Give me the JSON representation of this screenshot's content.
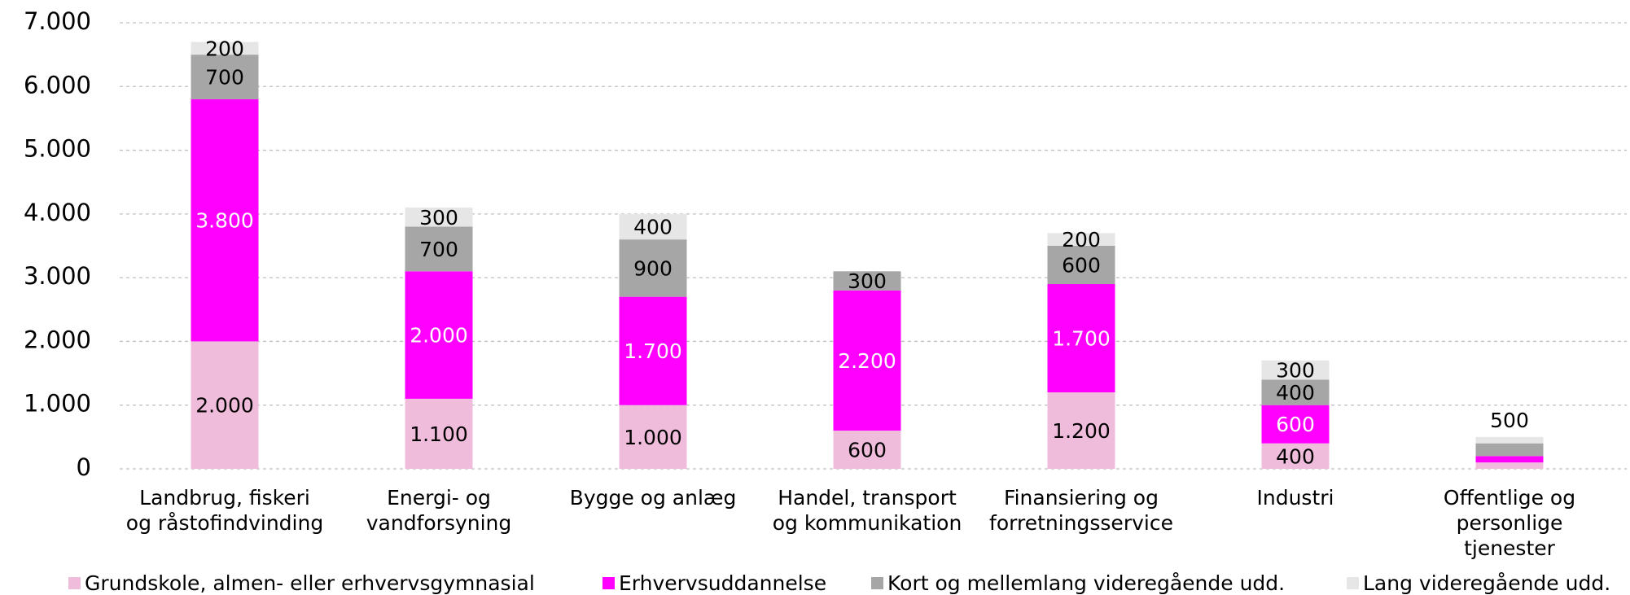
{
  "chart_data": {
    "type": "stacked_bar",
    "categories": [
      [
        "Landbrug, fiskeri",
        "og råstofindvinding"
      ],
      [
        "Energi- og",
        "vandforsyning"
      ],
      [
        "Bygge og anlæg"
      ],
      [
        "Handel, transport",
        "og kommunikation"
      ],
      [
        "Finansiering og",
        "forretningsservice"
      ],
      [
        "Industri"
      ],
      [
        "Offentlige og",
        "personlige",
        "tjenester"
      ]
    ],
    "series": [
      {
        "name": "Grundskole, almen- eller erhvervsgymnasial",
        "color": "#f0bcdc",
        "label_color": "#000000",
        "values": [
          2000,
          1100,
          1000,
          600,
          1200,
          400,
          100
        ],
        "value_labels": [
          "2.000",
          "1.100",
          "1.000",
          "600",
          "1.200",
          "400",
          null
        ]
      },
      {
        "name": "Erhvervsuddannelse",
        "color": "#ff00ff",
        "label_color": "#ffffff",
        "values": [
          3800,
          2000,
          1700,
          2200,
          1700,
          600,
          100
        ],
        "value_labels": [
          "3.800",
          "2.000",
          "1.700",
          "2.200",
          "1.700",
          "600",
          null
        ]
      },
      {
        "name": "Kort og mellemlang videregående udd.",
        "color": "#a6a6a6",
        "label_color": "#000000",
        "values": [
          700,
          700,
          900,
          300,
          600,
          400,
          200
        ],
        "value_labels": [
          "700",
          "700",
          "900",
          "300",
          "600",
          "400",
          null
        ]
      },
      {
        "name": "Lang videregående udd.",
        "color": "#e6e6e6",
        "label_color": "#000000",
        "values": [
          200,
          300,
          400,
          0,
          200,
          300,
          100
        ],
        "value_labels": [
          "200",
          "300",
          "400",
          null,
          "200",
          "300",
          null
        ]
      }
    ],
    "annotations": [
      {
        "text": "500",
        "x": 6,
        "y": 500
      }
    ],
    "ylim": [
      0,
      7000
    ],
    "yticks": [
      0,
      {
        "value": 1000,
        "label": "1.000"
      },
      {
        "value": 2000,
        "label": "2.000"
      },
      {
        "value": 3000,
        "label": "3.000"
      },
      {
        "value": 4000,
        "label": "4.000"
      },
      {
        "value": 5000,
        "label": "5.000"
      },
      {
        "value": 6000,
        "label": "6.000"
      },
      {
        "value": 7000,
        "label": "7.000"
      }
    ],
    "grid": true,
    "legend": "bottom"
  }
}
